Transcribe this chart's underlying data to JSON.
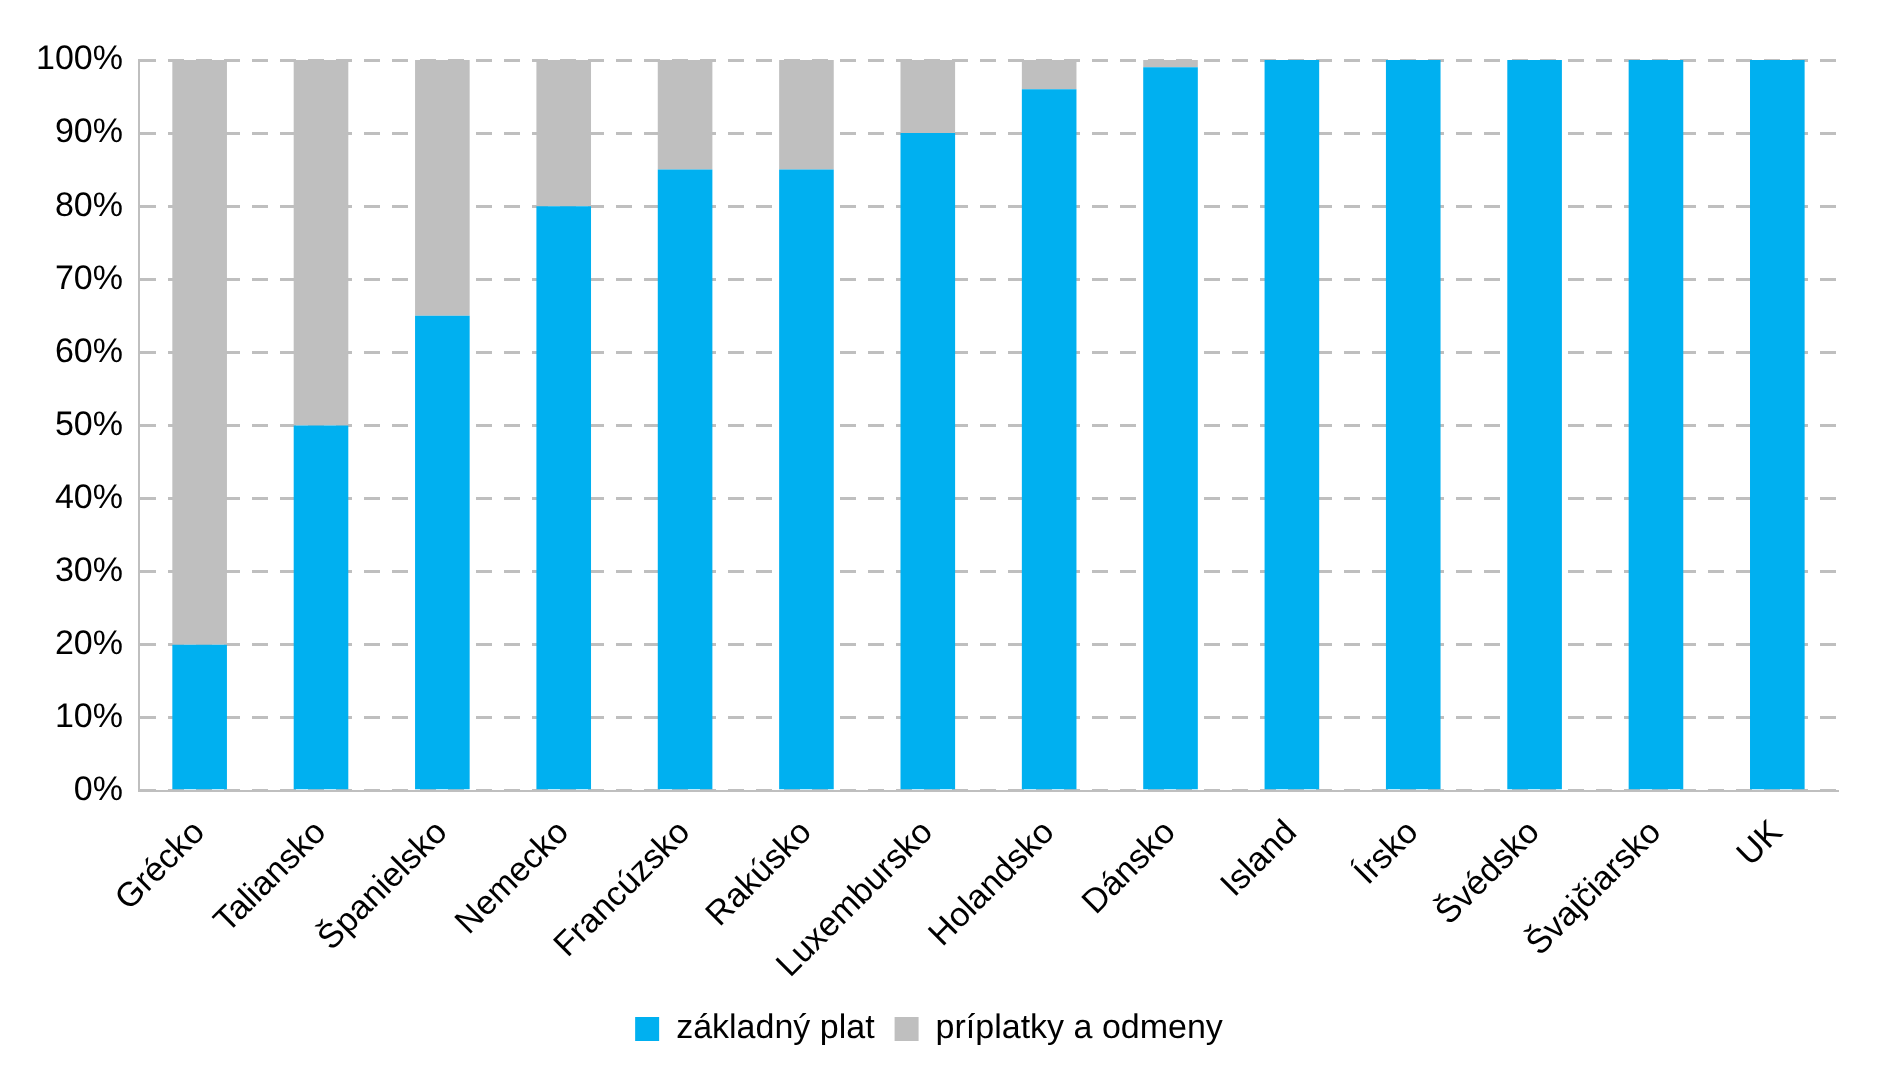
{
  "chart_data": {
    "type": "bar",
    "stacked": true,
    "categories": [
      "Grécko",
      "Taliansko",
      "Španielsko",
      "Nemecko",
      "Francúzsko",
      "Rakúsko",
      "Luxembursko",
      "Holandsko",
      "Dánsko",
      "Island",
      "Írsko",
      "Švédsko",
      "Švajčiarsko",
      "UK"
    ],
    "series": [
      {
        "name": "základný plat",
        "color": "#00b0f0",
        "values": [
          20,
          50,
          65,
          80,
          85,
          85,
          90,
          96,
          99,
          100,
          100,
          100,
          100,
          100
        ]
      },
      {
        "name": "príplatky a odmeny",
        "color": "#bfbfbf",
        "values": [
          80,
          50,
          35,
          20,
          15,
          15,
          10,
          4,
          1,
          0,
          0,
          0,
          0,
          0
        ]
      }
    ],
    "ylim": [
      0,
      100
    ],
    "yticks": [
      {
        "value": 0,
        "label": "0%"
      },
      {
        "value": 10,
        "label": "10%"
      },
      {
        "value": 20,
        "label": "20%"
      },
      {
        "value": 30,
        "label": "30%"
      },
      {
        "value": 40,
        "label": "40%"
      },
      {
        "value": 50,
        "label": "50%"
      },
      {
        "value": 60,
        "label": "60%"
      },
      {
        "value": 70,
        "label": "70%"
      },
      {
        "value": 80,
        "label": "80%"
      },
      {
        "value": 90,
        "label": "90%"
      },
      {
        "value": 100,
        "label": "100%"
      }
    ],
    "grid": "y",
    "legend": "bottom"
  }
}
